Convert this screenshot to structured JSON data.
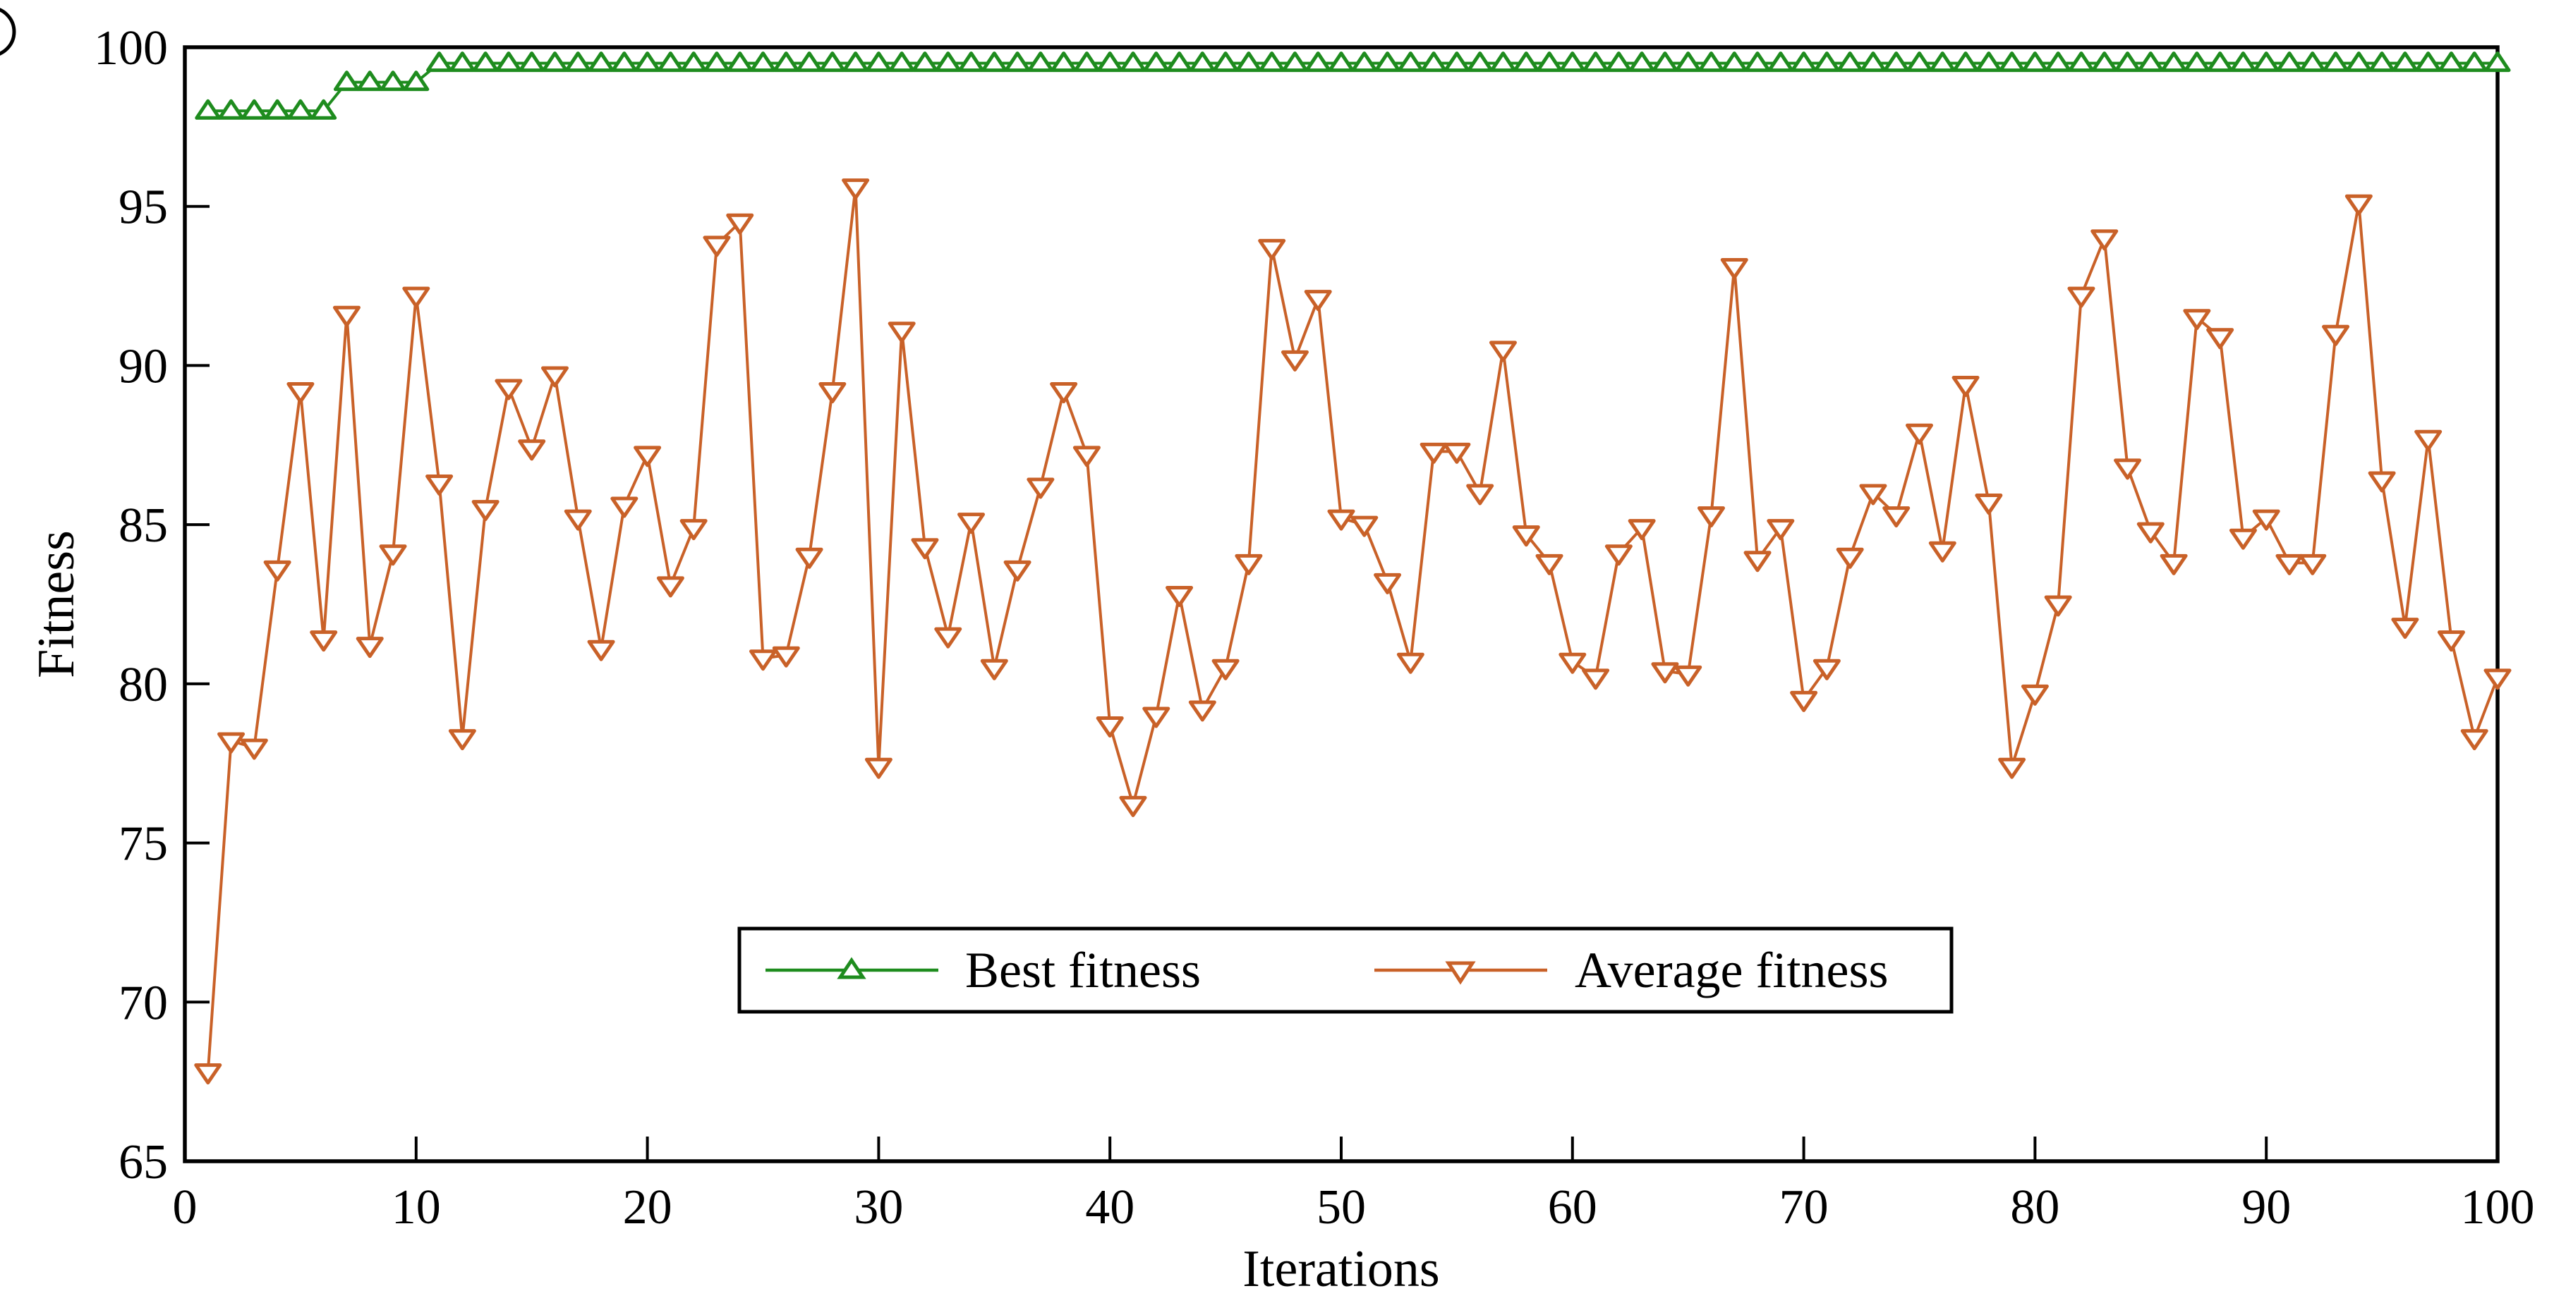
{
  "figure": {
    "background": "#ffffff",
    "axis_color": "#000000",
    "plot_border": "black rectangular box, no grid",
    "artifact": "partially cropped circle glyph at extreme top-left edge of image"
  },
  "x_axis": {
    "label": "Iterations",
    "tick_labels": [
      "0",
      "10",
      "20",
      "30",
      "40",
      "50",
      "60",
      "70",
      "80",
      "90",
      "100"
    ]
  },
  "y_axis": {
    "label": "Fitness",
    "tick_labels": [
      "65",
      "70",
      "75",
      "80",
      "85",
      "90",
      "95",
      "100"
    ]
  },
  "legend": {
    "position": "inside-bottom-center",
    "items": [
      {
        "label": "Best fitness",
        "color": "#1e8c1e",
        "marker": "triangle-up-icon"
      },
      {
        "label": "Average fitness",
        "color": "#c96128",
        "marker": "triangle-down-icon"
      }
    ]
  },
  "chart_data": {
    "type": "line",
    "title": "",
    "xlabel": "Iterations",
    "ylabel": "Fitness",
    "xlim": [
      0,
      100
    ],
    "ylim": [
      65,
      100
    ],
    "x_ticks": [
      0,
      10,
      20,
      30,
      40,
      50,
      60,
      70,
      80,
      90,
      100
    ],
    "y_ticks": [
      65,
      70,
      75,
      80,
      85,
      90,
      95,
      100
    ],
    "grid": false,
    "legend_position": "inside-bottom-center",
    "x": [
      1,
      2,
      3,
      4,
      5,
      6,
      7,
      8,
      9,
      10,
      11,
      12,
      13,
      14,
      15,
      16,
      17,
      18,
      19,
      20,
      21,
      22,
      23,
      24,
      25,
      26,
      27,
      28,
      29,
      30,
      31,
      32,
      33,
      34,
      35,
      36,
      37,
      38,
      39,
      40,
      41,
      42,
      43,
      44,
      45,
      46,
      47,
      48,
      49,
      50,
      51,
      52,
      53,
      54,
      55,
      56,
      57,
      58,
      59,
      60,
      61,
      62,
      63,
      64,
      65,
      66,
      67,
      68,
      69,
      70,
      71,
      72,
      73,
      74,
      75,
      76,
      77,
      78,
      79,
      80,
      81,
      82,
      83,
      84,
      85,
      86,
      87,
      88,
      89,
      90,
      91,
      92,
      93,
      94,
      95,
      96,
      97,
      98,
      99,
      100
    ],
    "series": [
      {
        "name": "Best fitness",
        "color": "#1e8c1e",
        "marker": "triangle-up",
        "values": [
          98.0,
          98.0,
          98.0,
          98.0,
          98.0,
          98.0,
          98.9,
          98.9,
          98.9,
          98.9,
          99.5,
          99.5,
          99.5,
          99.5,
          99.5,
          99.5,
          99.5,
          99.5,
          99.5,
          99.5,
          99.5,
          99.5,
          99.5,
          99.5,
          99.5,
          99.5,
          99.5,
          99.5,
          99.5,
          99.5,
          99.5,
          99.5,
          99.5,
          99.5,
          99.5,
          99.5,
          99.5,
          99.5,
          99.5,
          99.5,
          99.5,
          99.5,
          99.5,
          99.5,
          99.5,
          99.5,
          99.5,
          99.5,
          99.5,
          99.5,
          99.5,
          99.5,
          99.5,
          99.5,
          99.5,
          99.5,
          99.5,
          99.5,
          99.5,
          99.5,
          99.5,
          99.5,
          99.5,
          99.5,
          99.5,
          99.5,
          99.5,
          99.5,
          99.5,
          99.5,
          99.5,
          99.5,
          99.5,
          99.5,
          99.5,
          99.5,
          99.5,
          99.5,
          99.5,
          99.5,
          99.5,
          99.5,
          99.5,
          99.5,
          99.5,
          99.5,
          99.5,
          99.5,
          99.5,
          99.5,
          99.5,
          99.5,
          99.5,
          99.5,
          99.5,
          99.5,
          99.5,
          99.5,
          99.5,
          99.5
        ]
      },
      {
        "name": "Average fitness",
        "color": "#c96128",
        "marker": "triangle-down",
        "values": [
          67.8,
          78.2,
          78.0,
          83.6,
          89.2,
          81.4,
          91.6,
          81.2,
          84.1,
          92.2,
          86.3,
          78.3,
          85.5,
          89.3,
          87.4,
          89.7,
          85.2,
          81.1,
          85.6,
          87.2,
          83.1,
          84.9,
          93.8,
          94.5,
          80.8,
          80.9,
          84.0,
          89.2,
          95.6,
          77.4,
          91.1,
          84.3,
          81.5,
          85.1,
          80.5,
          83.6,
          86.2,
          89.2,
          87.2,
          78.7,
          76.2,
          79.0,
          82.8,
          79.2,
          80.5,
          83.8,
          93.7,
          90.2,
          92.1,
          85.2,
          85.0,
          83.2,
          80.7,
          87.3,
          87.3,
          86.0,
          90.5,
          84.7,
          83.8,
          80.7,
          80.2,
          84.1,
          84.9,
          80.4,
          80.3,
          85.3,
          93.1,
          83.9,
          84.9,
          79.5,
          80.5,
          84.0,
          86.0,
          85.3,
          87.9,
          84.2,
          89.4,
          85.7,
          77.4,
          79.7,
          82.5,
          92.2,
          94.0,
          86.8,
          84.8,
          83.8,
          91.5,
          90.9,
          84.6,
          85.2,
          83.8,
          83.8,
          91.0,
          95.1,
          86.4,
          81.8,
          87.7,
          81.4,
          78.3,
          80.2
        ]
      }
    ]
  }
}
